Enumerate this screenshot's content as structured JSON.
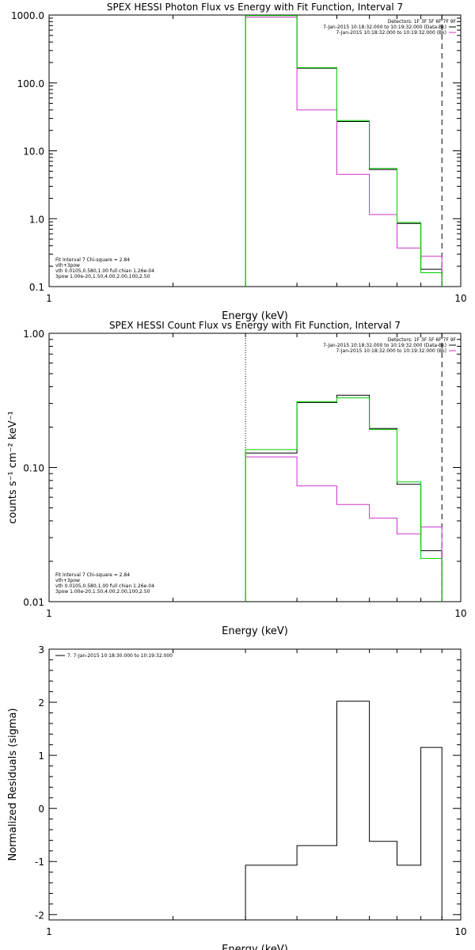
{
  "chart_data": [
    {
      "type": "line",
      "title": "SPEX HESSI Photon Flux vs Energy with Fit Function, Interval 7",
      "xlabel": "Energy (keV)",
      "ylabel": "",
      "xscale": "log",
      "yscale": "log",
      "xlim": [
        1,
        10
      ],
      "ylim": [
        0.1,
        1000
      ],
      "x_ticks": [
        {
          "v": 1,
          "label": "1"
        },
        {
          "v": 10,
          "label": "10"
        }
      ],
      "y_ticks": [
        {
          "v": 0.1,
          "label": "0.1"
        },
        {
          "v": 1,
          "label": "1.0"
        },
        {
          "v": 10,
          "label": "10.0"
        },
        {
          "v": 100,
          "label": "100.0"
        },
        {
          "v": 1000,
          "label": "1000.0"
        }
      ],
      "bin_edges": [
        3,
        4,
        5,
        6,
        7,
        8,
        9
      ],
      "series": [
        {
          "name": "7-Jan-2015 10:18:32.000 to 10:19:32.000 (Data-Bk)",
          "color": "#000000",
          "values": [
            1000,
            165,
            27,
            5.3,
            0.85,
            0.18
          ]
        },
        {
          "name": "7-Jan-2015 10:18:32.000 to 10:19:32.000 (Bk)",
          "color": "#cc33cc",
          "values": [
            930,
            40,
            4.5,
            1.15,
            0.37,
            0.28
          ]
        },
        {
          "name": "vth 0.0105,0.580,1.00  full chian 1.26e-04",
          "color": "#00cc00",
          "values": [
            980,
            168,
            28,
            5.5,
            0.88,
            0.16
          ]
        }
      ],
      "vlines": [
        {
          "x": 3,
          "style": "dotted"
        },
        {
          "x": 9,
          "style": "dashed"
        }
      ],
      "legend_top": {
        "lines": [
          {
            "text": "Detectors: 1F 3F 5F 6F 7F 9F",
            "color": ""
          },
          {
            "text": "7-Jan-2015 10:18:32.000 to 10:19:32.000 (Data-Bk)",
            "color": "#000000"
          },
          {
            "text": "7-Jan-2015 10:18:32.000 to 10:19:32.000 (Bk)",
            "color": "#cc33cc"
          }
        ]
      },
      "legend_bottom": {
        "lines": [
          {
            "text": "Fit Interval 7   Chi-square = 2.84",
            "color": ""
          },
          {
            "text": "vth+3pow",
            "color": "#cc3333"
          },
          {
            "text": "vth 0.0105,0.580,1.00  full chian 1.26e-04",
            "color": "#00cc00"
          },
          {
            "text": "3pow 1.00e-20,1.50,4.00,2.00,100,2.50",
            "color": "#cc9900"
          }
        ]
      }
    },
    {
      "type": "line",
      "title": "SPEX HESSI Count Flux vs Energy with Fit Function, Interval 7",
      "xlabel": "Energy (keV)",
      "ylabel": "counts s⁻¹ cm⁻² keV⁻¹",
      "xscale": "log",
      "yscale": "log",
      "xlim": [
        1,
        10
      ],
      "ylim": [
        0.01,
        1
      ],
      "x_ticks": [
        {
          "v": 1,
          "label": "1"
        },
        {
          "v": 10,
          "label": "10"
        }
      ],
      "y_ticks": [
        {
          "v": 0.01,
          "label": "0.01"
        },
        {
          "v": 0.1,
          "label": "0.10"
        },
        {
          "v": 1,
          "label": "1.00"
        }
      ],
      "bin_edges": [
        3,
        4,
        5,
        6,
        7,
        8,
        9
      ],
      "series": [
        {
          "name": "7-Jan-2015 10:18:32.000 to 10:19:32.000 (Data-Bk)",
          "color": "#000000",
          "values": [
            0.128,
            0.305,
            0.345,
            0.195,
            0.075,
            0.024
          ]
        },
        {
          "name": "7-Jan-2015 10:18:32.000 to 10:19:32.000 (Bk)",
          "color": "#cc33cc",
          "values": [
            0.12,
            0.073,
            0.053,
            0.042,
            0.032,
            0.036
          ]
        },
        {
          "name": "vth 0.0105,0.580,1.00  full chian 1.26e-04",
          "color": "#00cc00",
          "values": [
            0.136,
            0.31,
            0.33,
            0.192,
            0.078,
            0.021
          ]
        }
      ],
      "vlines": [
        {
          "x": 3,
          "style": "dotted"
        },
        {
          "x": 9,
          "style": "dashed"
        }
      ],
      "legend_top": {
        "lines": [
          {
            "text": "Detectors: 1F 3F 5F 6F 7F 9F",
            "color": ""
          },
          {
            "text": "7-Jan-2015 10:18:32.000 to 10:19:32.000 (Data-Bk)",
            "color": "#000000"
          },
          {
            "text": "7-Jan-2015 10:18:32.000 to 10:19:32.000 (Bk)",
            "color": "#cc33cc"
          }
        ]
      },
      "legend_bottom": {
        "lines": [
          {
            "text": "Fit Interval 7   Chi-square = 2.84",
            "color": ""
          },
          {
            "text": "vth+3pow",
            "color": "#cc3333"
          },
          {
            "text": "vth 0.0105,0.580,1.00  full chian 1.26e-04",
            "color": "#00cc00"
          },
          {
            "text": "3pow 1.00e-20,1.50,4.00,2.00,100,2.50",
            "color": "#cc9900"
          }
        ]
      }
    },
    {
      "type": "line",
      "title": "",
      "xlabel": "Energy (keV)",
      "ylabel": "Normalized Residuals (sigma)",
      "xscale": "log",
      "yscale": "linear",
      "xlim": [
        1,
        10
      ],
      "ylim": [
        -2.1,
        3
      ],
      "x_ticks": [
        {
          "v": 1,
          "label": "1"
        },
        {
          "v": 10,
          "label": "10"
        }
      ],
      "y_ticks": [
        {
          "v": -2,
          "label": "-2"
        },
        {
          "v": -1,
          "label": "-1"
        },
        {
          "v": 0,
          "label": "0"
        },
        {
          "v": 1,
          "label": "1"
        },
        {
          "v": 2,
          "label": "2"
        },
        {
          "v": 3,
          "label": "3"
        }
      ],
      "bin_edges": [
        3,
        4,
        5,
        6,
        7,
        8,
        9
      ],
      "series": [
        {
          "name": "7-Jan-2015 10:18:30.000 to 10:19:32.000",
          "color": "#000000",
          "values": [
            -1.07,
            -0.7,
            2.02,
            -0.62,
            -1.07,
            1.15
          ]
        }
      ],
      "vlines": [],
      "legend_top": {
        "lines": [
          {
            "text": "7.  7-Jan-2015 10:18:30.000 to 10:19:32.000",
            "color": "#000000"
          }
        ]
      },
      "legend_bottom": {
        "lines": []
      }
    }
  ]
}
